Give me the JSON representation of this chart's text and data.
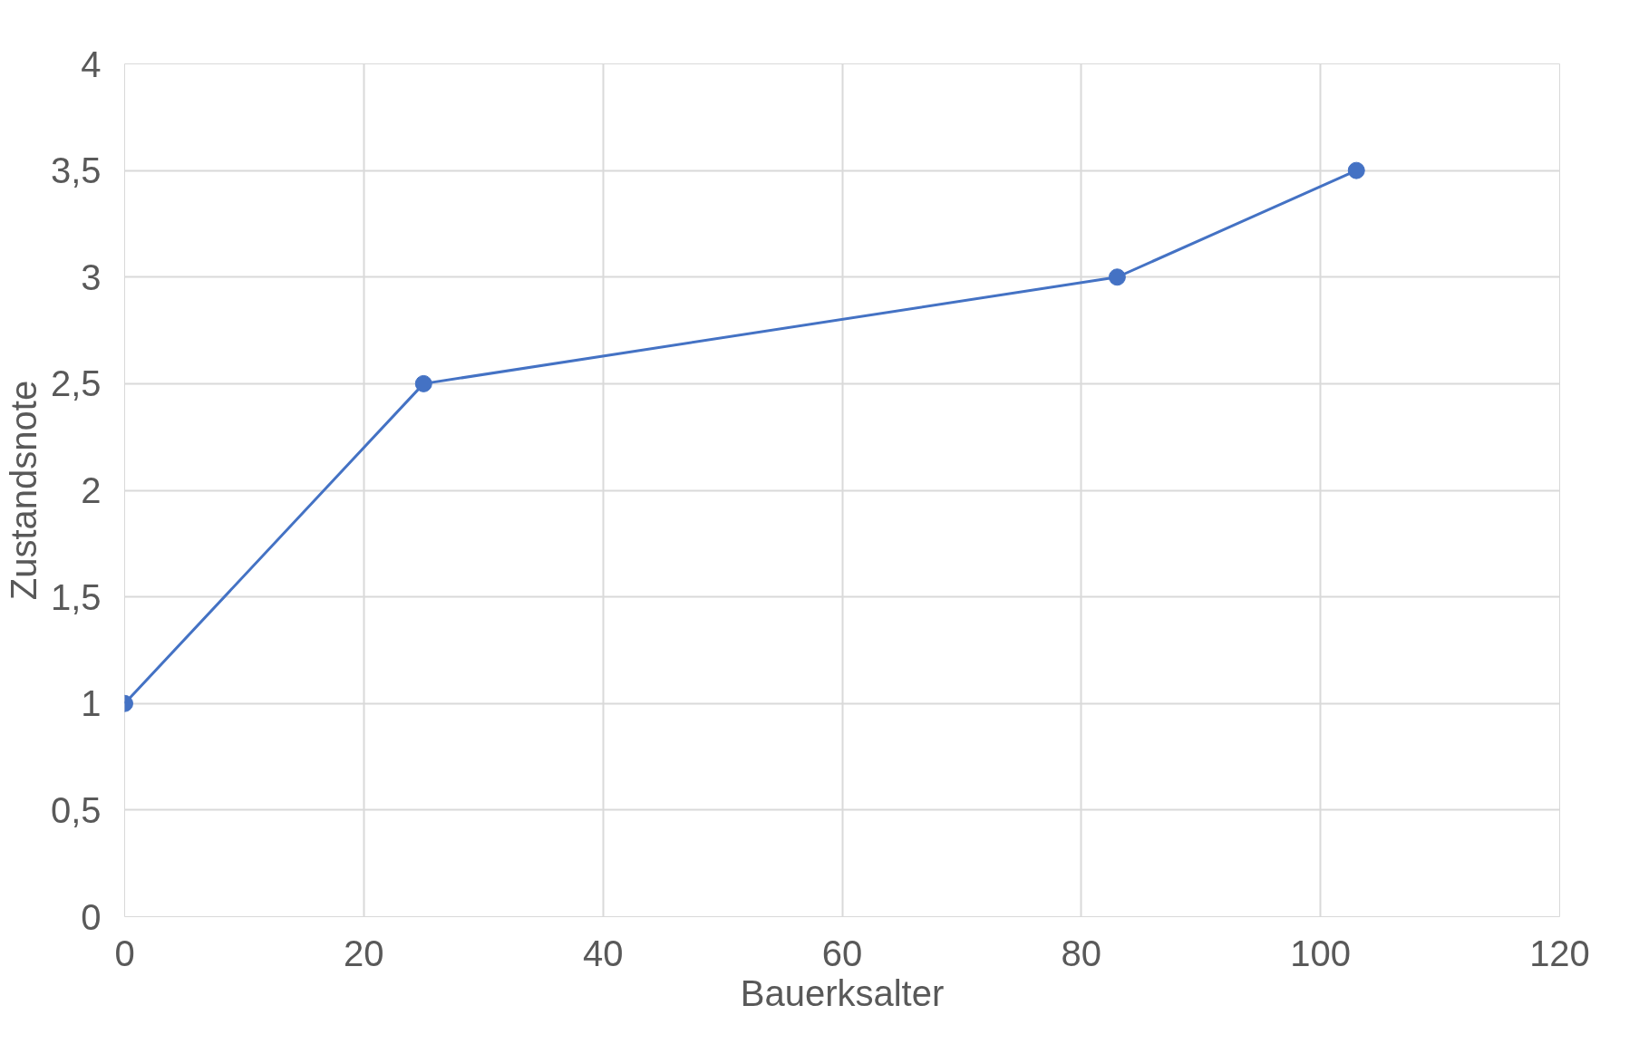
{
  "chart_data": {
    "type": "line",
    "xlabel": "Bauerksalter",
    "ylabel": "Zustandsnote",
    "x": [
      0,
      25,
      83,
      103
    ],
    "series": [
      {
        "color": "#4472c4",
        "values": [
          1,
          2.5,
          3,
          3.5
        ]
      }
    ],
    "xlim": [
      0,
      120
    ],
    "xticks": [
      0,
      20,
      40,
      60,
      80,
      100,
      120
    ],
    "ylim": [
      0,
      4
    ],
    "yticks": [
      0,
      {
        "value": 0.5,
        "label": "0,5"
      },
      1,
      {
        "value": 1.5,
        "label": "1,5"
      },
      2,
      {
        "value": 2.5,
        "label": "2,5"
      },
      3,
      {
        "value": 3.5,
        "label": "3,5"
      },
      4
    ],
    "grid": true,
    "marker": "circle",
    "line_style": "solid"
  }
}
